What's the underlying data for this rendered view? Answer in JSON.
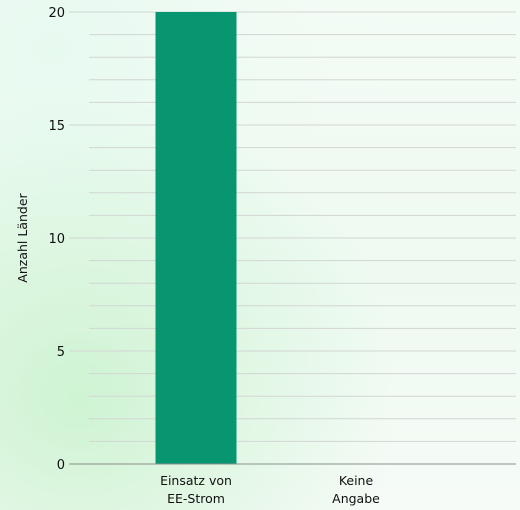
{
  "chart_data": {
    "type": "bar",
    "categories": [
      [
        "Einsatz von",
        "EE-Strom"
      ],
      [
        "Keine",
        "Angabe"
      ]
    ],
    "values": [
      20,
      0
    ],
    "ylabel": "Anzahl Länder",
    "xlabel": "",
    "ylim": [
      0,
      20
    ],
    "yticks": [
      0,
      5,
      10,
      15,
      20
    ],
    "minor_gridlines_per_major": 5,
    "grid": true,
    "bar_color": "#079670",
    "grid_color": "#d2d6d3"
  }
}
